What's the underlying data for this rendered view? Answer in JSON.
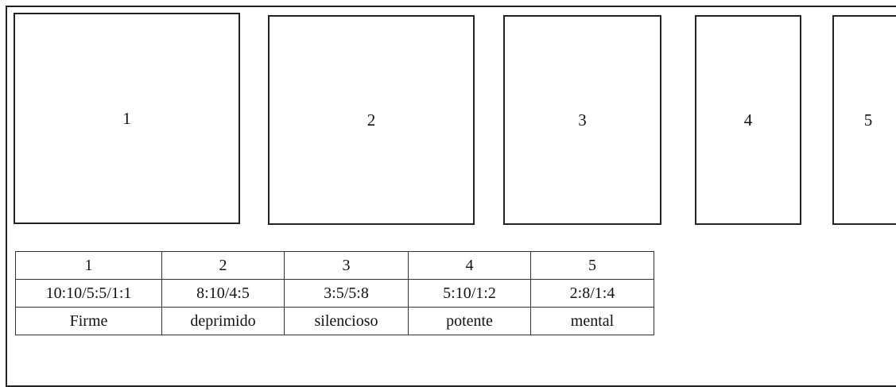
{
  "boxes": [
    {
      "label": "1"
    },
    {
      "label": "2"
    },
    {
      "label": "3"
    },
    {
      "label": "4"
    },
    {
      "label": "5"
    }
  ],
  "table": {
    "numbers": [
      "1",
      "2",
      "3",
      "4",
      "5"
    ],
    "ratios": [
      "10:10/5:5/1:1",
      "8:10/4:5",
      "3:5/5:8",
      "5:10/1:2",
      "2:8/1:4"
    ],
    "words": [
      "Firme",
      "deprimido",
      "silencioso",
      "potente",
      "mental"
    ]
  }
}
